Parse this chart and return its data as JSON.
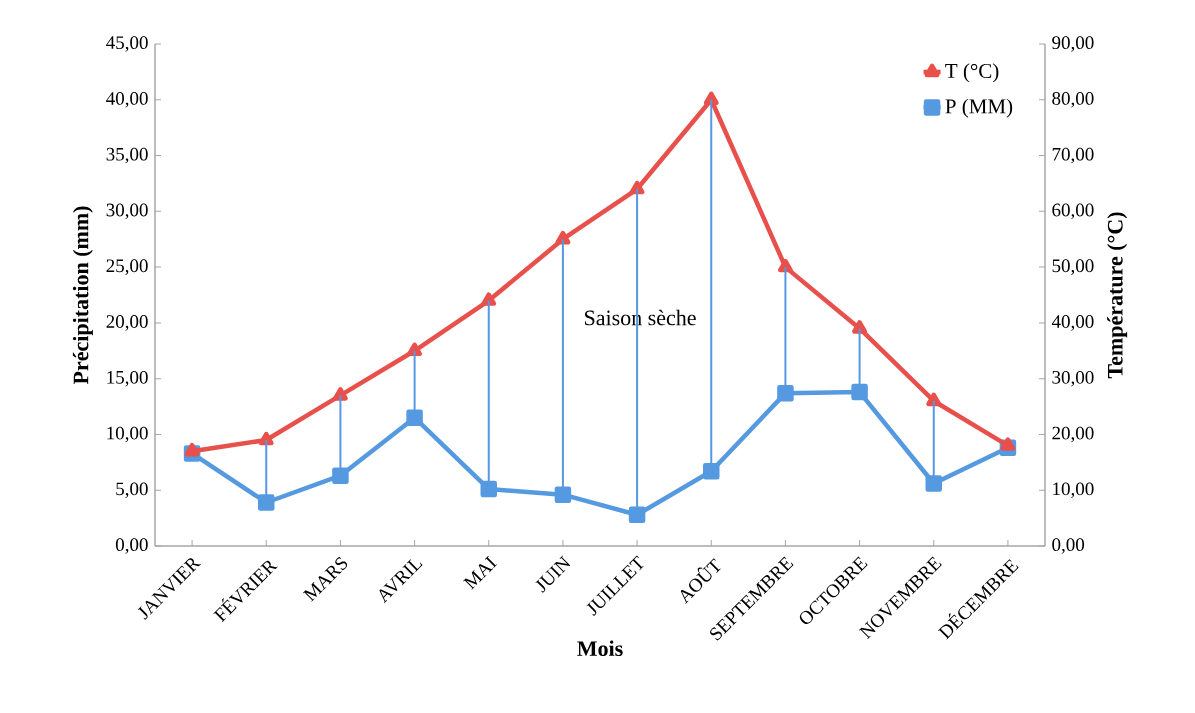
{
  "chart_data": {
    "type": "line",
    "xlabel": "Mois",
    "ylabel": "Précipitation (mm)",
    "y2label": "Température (°C)",
    "categories": [
      "JANVIER",
      "FÉVRIER",
      "MARS",
      "AVRIL",
      "MAI",
      "JUIN",
      "JUILLET",
      "AOÛT",
      "SEPTEMBRE",
      "OCTOBRE",
      "NOVEMBRE",
      "DÉCEMBRE"
    ],
    "series": [
      {
        "name": "T (°C)",
        "color": "#e8504c",
        "axis": "y2",
        "marker": "triangle",
        "values": [
          17,
          19,
          27,
          35,
          44,
          55,
          64,
          80,
          50,
          39,
          26,
          18
        ]
      },
      {
        "name": "P (MM)",
        "color": "#5599e0",
        "marker": "square",
        "values": [
          8.3,
          3.9,
          6.3,
          11.5,
          5.1,
          4.6,
          2.8,
          6.7,
          13.7,
          13.8,
          5.6,
          8.8
        ],
        "errors": [
          null,
          [
            3.9,
            9.5
          ],
          [
            6.3,
            13.5
          ],
          [
            11.5,
            17.5
          ],
          [
            5.1,
            22
          ],
          [
            4.6,
            27.5
          ],
          [
            2.8,
            32
          ],
          [
            6.7,
            40
          ],
          [
            13.7,
            25
          ],
          [
            13.8,
            19.5
          ],
          [
            5.6,
            13
          ],
          null
        ]
      }
    ],
    "ylim": [
      0,
      45
    ],
    "yticks": [
      {
        "value": 0,
        "label": "0,00"
      },
      {
        "value": 5,
        "label": "5,00"
      },
      {
        "value": 10,
        "label": "10,00"
      },
      {
        "value": 15,
        "label": "15,00"
      },
      {
        "value": 20,
        "label": "20,00"
      },
      {
        "value": 25,
        "label": "25,00"
      },
      {
        "value": 30,
        "label": "30,00"
      },
      {
        "value": 35,
        "label": "35,00"
      },
      {
        "value": 40,
        "label": "40,00"
      },
      {
        "value": 45,
        "label": "45,00"
      }
    ],
    "y2lim": [
      0,
      90
    ],
    "y2ticks": [
      {
        "value": 0,
        "label": "0,00"
      },
      {
        "value": 10,
        "label": "10,00"
      },
      {
        "value": 20,
        "label": "20,00"
      },
      {
        "value": 30,
        "label": "30,00"
      },
      {
        "value": 40,
        "label": "40,00"
      },
      {
        "value": 50,
        "label": "50,00"
      },
      {
        "value": 60,
        "label": "60,00"
      },
      {
        "value": 70,
        "label": "70,00"
      },
      {
        "value": 80,
        "label": "80,00"
      },
      {
        "value": 90,
        "label": "90,00"
      }
    ],
    "annotations": [
      "Saison sèche"
    ],
    "legend": "top right",
    "line_style": "solid"
  }
}
